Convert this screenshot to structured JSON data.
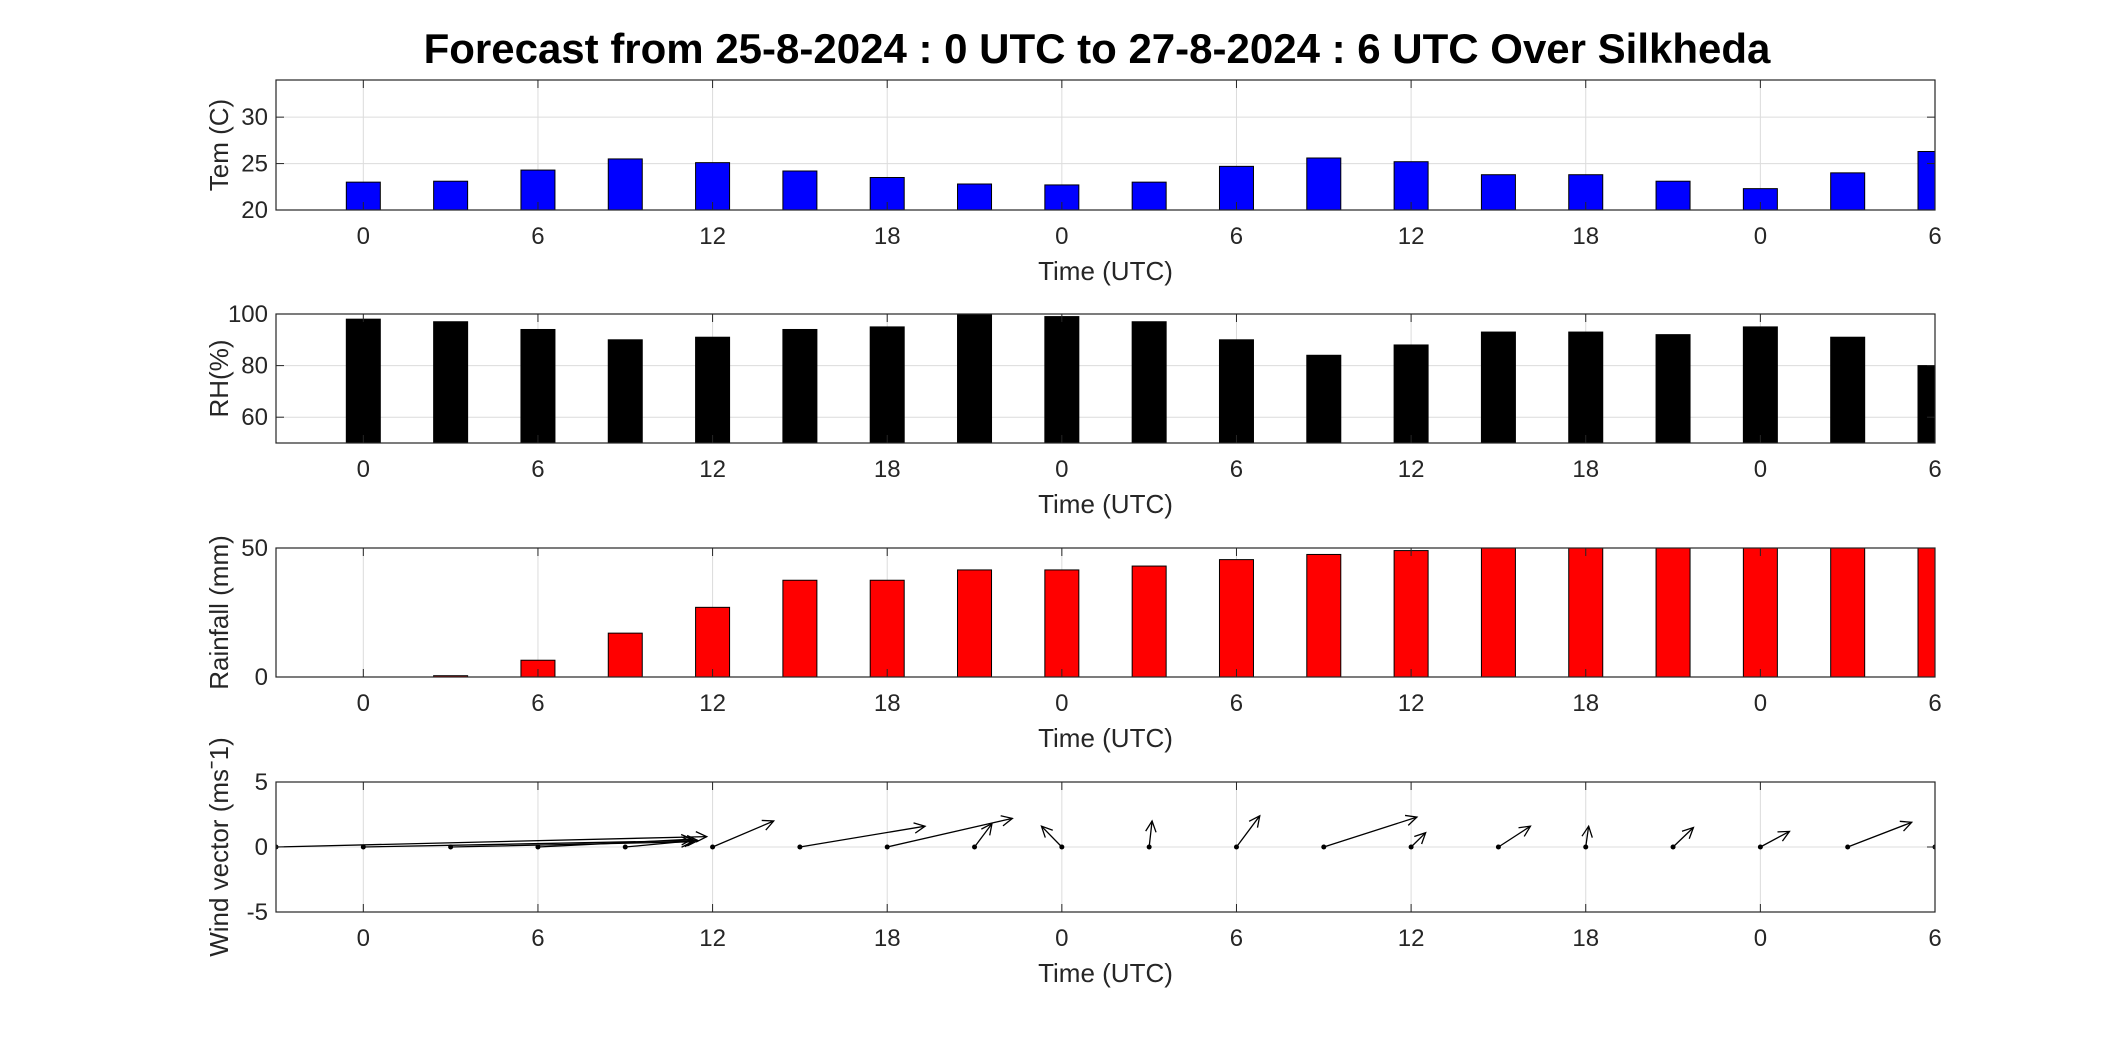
{
  "title": "Forecast from 25-8-2024 : 0 UTC to 27-8-2024 : 6 UTC Over Silkheda",
  "xlabel": "Time (UTC)",
  "chart_data": [
    {
      "type": "bar",
      "ylabel": "Tem (C)",
      "ylim": [
        20,
        34
      ],
      "yticks": [
        "20",
        "25",
        "30"
      ],
      "ytick_values": [
        20,
        25,
        30
      ],
      "x": [
        0,
        3,
        6,
        9,
        12,
        15,
        18,
        21,
        24,
        27,
        30,
        33,
        36,
        39,
        42,
        45,
        48,
        51,
        54
      ],
      "xlim": [
        -3,
        54
      ],
      "xticks": [
        "0",
        "6",
        "12",
        "18",
        "0",
        "6",
        "12",
        "18",
        "0",
        "6"
      ],
      "xtick_values": [
        0,
        6,
        12,
        18,
        24,
        30,
        36,
        42,
        48,
        54
      ],
      "values": [
        23.0,
        23.1,
        24.3,
        25.5,
        25.1,
        24.2,
        23.5,
        22.8,
        22.7,
        23.0,
        24.7,
        25.6,
        25.2,
        23.8,
        23.8,
        23.1,
        22.3,
        24.0,
        26.3
      ],
      "color": "#0000ff",
      "grid": true
    },
    {
      "type": "bar",
      "ylabel": "RH(%)",
      "ylim": [
        50,
        100
      ],
      "yticks": [
        "60",
        "80",
        "100"
      ],
      "ytick_values": [
        60,
        80,
        100
      ],
      "x": [
        0,
        3,
        6,
        9,
        12,
        15,
        18,
        21,
        24,
        27,
        30,
        33,
        36,
        39,
        42,
        45,
        48,
        51,
        54
      ],
      "xlim": [
        -3,
        54
      ],
      "xticks": [
        "0",
        "6",
        "12",
        "18",
        "0",
        "6",
        "12",
        "18",
        "0",
        "6"
      ],
      "xtick_values": [
        0,
        6,
        12,
        18,
        24,
        30,
        36,
        42,
        48,
        54
      ],
      "values": [
        98,
        97,
        94,
        90,
        91,
        94,
        95,
        100,
        99,
        97,
        90,
        84,
        88,
        93,
        93,
        92,
        95,
        91,
        80
      ],
      "color": "#000000",
      "grid": true
    },
    {
      "type": "bar",
      "ylabel": "Rainfall (mm)",
      "ylim": [
        0,
        50
      ],
      "yticks": [
        "0",
        "50"
      ],
      "ytick_values": [
        0,
        50
      ],
      "x": [
        0,
        3,
        6,
        9,
        12,
        15,
        18,
        21,
        24,
        27,
        30,
        33,
        36,
        39,
        42,
        45,
        48,
        51,
        54
      ],
      "xlim": [
        -3,
        54
      ],
      "xticks": [
        "0",
        "6",
        "12",
        "18",
        "0",
        "6",
        "12",
        "18",
        "0",
        "6"
      ],
      "xtick_values": [
        0,
        6,
        12,
        18,
        24,
        30,
        36,
        42,
        48,
        54
      ],
      "values": [
        0,
        0.5,
        6.5,
        17,
        27,
        37.5,
        37.5,
        41.5,
        41.5,
        43,
        45.5,
        47.5,
        49,
        50,
        50,
        50,
        50,
        50,
        50
      ],
      "color": "#ff0000",
      "grid": true
    },
    {
      "type": "quiver",
      "ylabel": "Wind vector (msˉ1)",
      "ylim": [
        -5,
        5
      ],
      "yticks": [
        "-5",
        "0",
        "5"
      ],
      "ytick_values": [
        -5,
        0,
        5
      ],
      "xlim": [
        -3,
        54
      ],
      "xticks": [
        "0",
        "6",
        "12",
        "18",
        "0",
        "6",
        "12",
        "18",
        "0",
        "6"
      ],
      "xtick_values": [
        0,
        6,
        12,
        18,
        24,
        30,
        36,
        42,
        48,
        54
      ],
      "x": [
        -3,
        0,
        3,
        6,
        9,
        12,
        15,
        18,
        21,
        24,
        27,
        30,
        33,
        36,
        39,
        42,
        45,
        48,
        51,
        54
      ],
      "u": [
        14.8,
        11.5,
        8.3,
        5.3,
        2.4,
        2.1,
        4.3,
        4.3,
        0.6,
        -0.7,
        0.1,
        0.8,
        3.2,
        0.5,
        1.1,
        0.1,
        0.7,
        1.0,
        2.2,
        0
      ],
      "v": [
        0.8,
        0.5,
        0.4,
        0.6,
        0.5,
        2.0,
        1.6,
        2.2,
        1.8,
        1.6,
        2.0,
        2.4,
        2.3,
        1.1,
        1.6,
        1.6,
        1.5,
        1.2,
        1.9,
        0
      ],
      "color": "#000000",
      "grid": true
    }
  ]
}
